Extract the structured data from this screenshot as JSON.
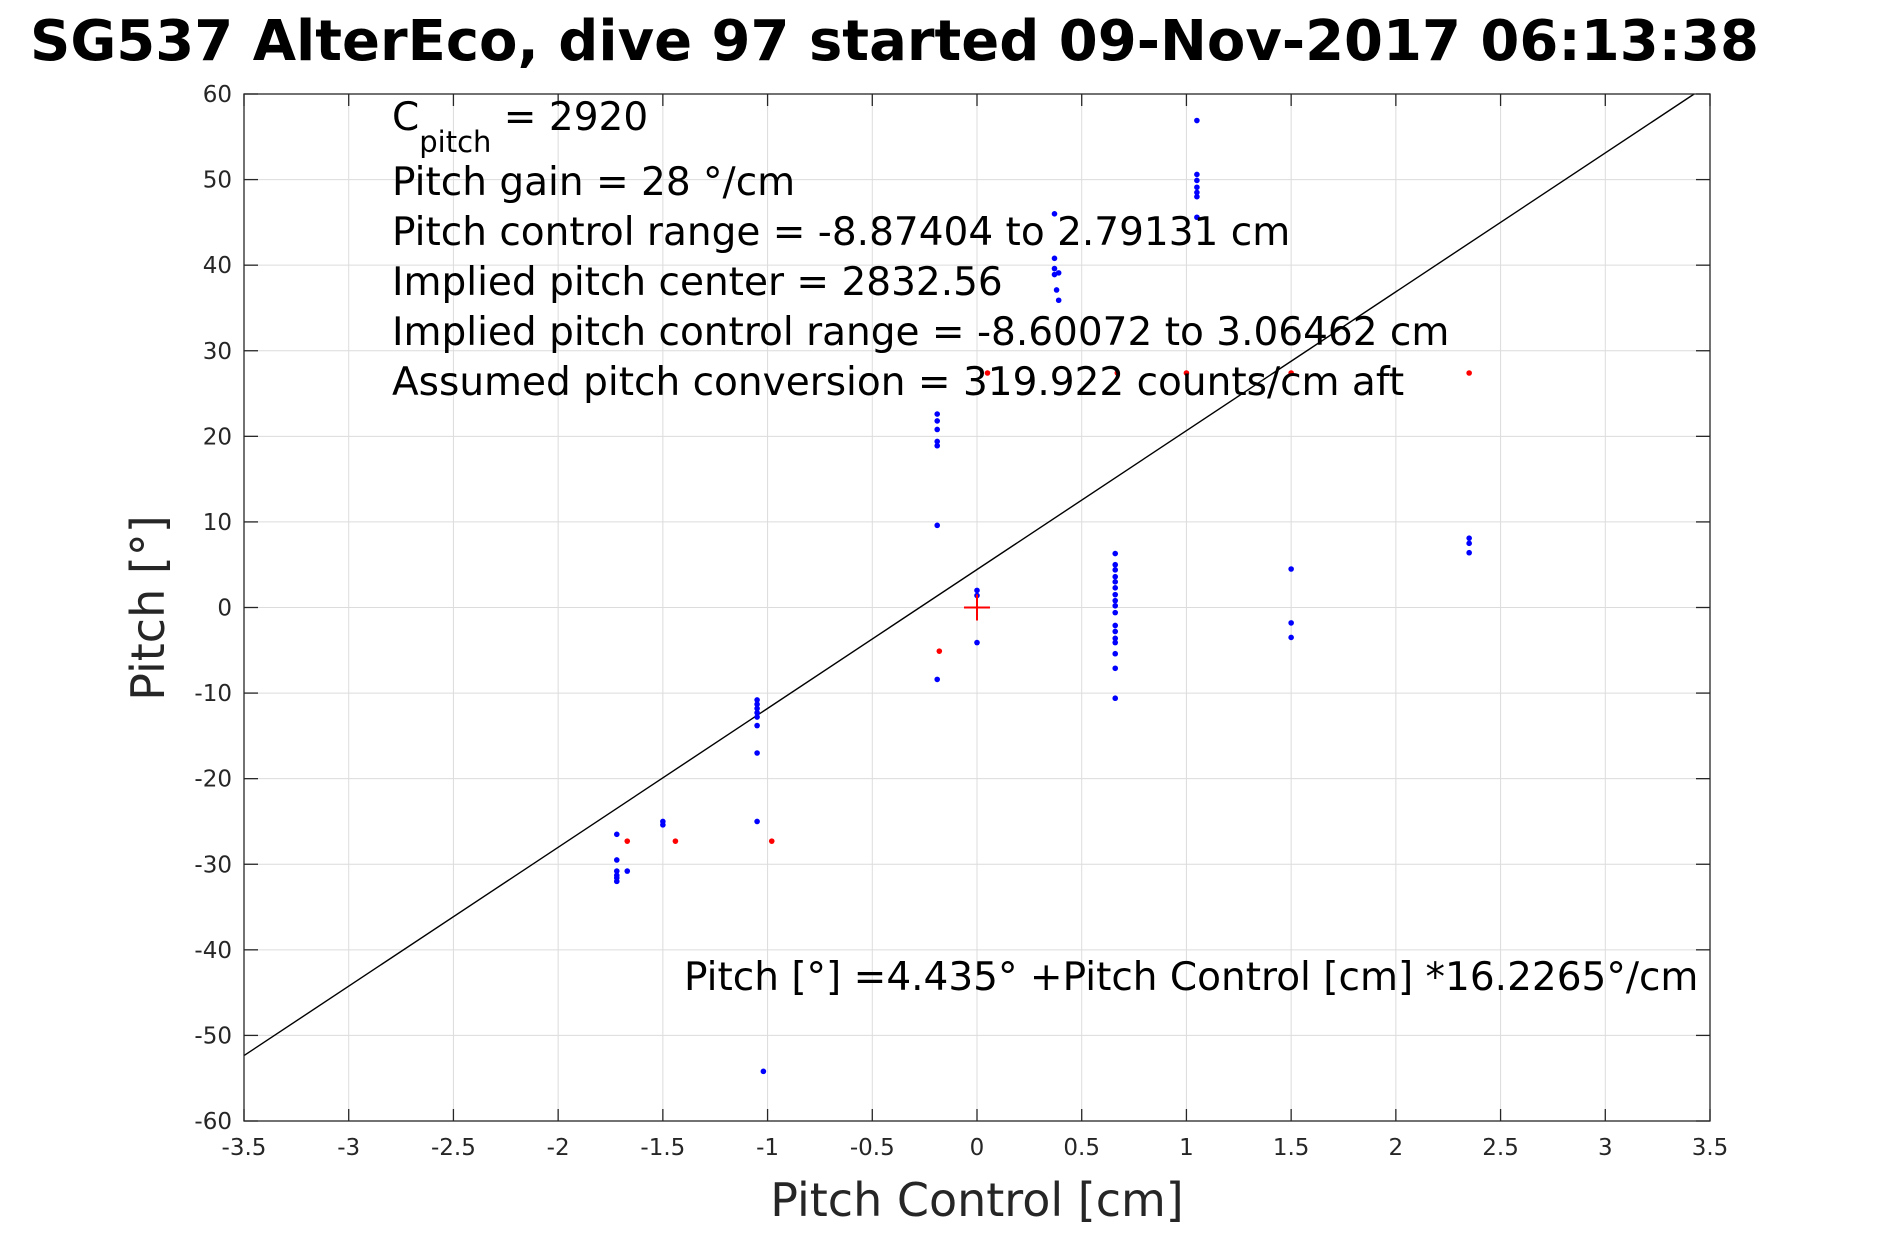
{
  "chart_data": {
    "type": "scatter",
    "title": "SG537 AlterEco, dive 97 started 09-Nov-2017 06:13:38",
    "xlabel": "Pitch Control [cm]",
    "ylabel": "Pitch [°]",
    "xlim": [
      -3.5,
      3.5
    ],
    "ylim": [
      -60,
      60
    ],
    "xticks": [
      -3.5,
      -3,
      -2.5,
      -2,
      -1.5,
      -1,
      -0.5,
      0,
      0.5,
      1,
      1.5,
      2,
      2.5,
      3,
      3.5
    ],
    "yticks": [
      -60,
      -50,
      -40,
      -30,
      -20,
      -10,
      0,
      10,
      20,
      30,
      40,
      50,
      60
    ],
    "xticklabels": [
      "-3.5",
      "-3",
      "-2.5",
      "-2",
      "-1.5",
      "-1",
      "-0.5",
      "0",
      "0.5",
      "1",
      "1.5",
      "2",
      "2.5",
      "3",
      "3.5"
    ],
    "yticklabels": [
      "-60",
      "-50",
      "-40",
      "-30",
      "-20",
      "-10",
      "0",
      "10",
      "20",
      "30",
      "40",
      "50",
      "60"
    ],
    "grid": true,
    "annotations": {
      "c_pitch_symbol": "C",
      "c_pitch_subscript": "pitch",
      "c_pitch_value": " = 2920",
      "lines": [
        "Pitch gain = 28 °/cm",
        "Pitch control range = -8.87404 to 2.79131 cm",
        "Implied pitch center = 2832.56",
        "Implied pitch control range = -8.60072 to 3.06462 cm",
        "Assumed pitch conversion = 319.922 counts/cm aft"
      ],
      "fit_equation": "Pitch [°] =4.435° +Pitch Control [cm] *16.2265°/cm"
    },
    "fit_line": {
      "intercept": 4.435,
      "slope": 16.2265,
      "color": "#000000"
    },
    "center_marker": {
      "x": 0,
      "y": 0,
      "color": "#ff0000"
    },
    "series": [
      {
        "color": "#0000ff",
        "points": [
          [
            -1.72,
            -26.5
          ],
          [
            -1.72,
            -29.5
          ],
          [
            -1.72,
            -30.8
          ],
          [
            -1.72,
            -31.3
          ],
          [
            -1.72,
            -31.6
          ],
          [
            -1.72,
            -32.0
          ],
          [
            -1.67,
            -30.8
          ],
          [
            -1.5,
            -25.0
          ],
          [
            -1.5,
            -25.4
          ],
          [
            -1.05,
            -10.8
          ],
          [
            -1.05,
            -11.3
          ],
          [
            -1.05,
            -11.8
          ],
          [
            -1.05,
            -12.3
          ],
          [
            -1.05,
            -12.8
          ],
          [
            -1.05,
            -13.8
          ],
          [
            -1.05,
            -17.0
          ],
          [
            -1.05,
            -25.0
          ],
          [
            -1.02,
            -54.2
          ],
          [
            -0.19,
            22.6
          ],
          [
            -0.19,
            21.8
          ],
          [
            -0.19,
            20.8
          ],
          [
            -0.19,
            19.4
          ],
          [
            -0.19,
            18.9
          ],
          [
            -0.19,
            9.6
          ],
          [
            -0.19,
            -8.4
          ],
          [
            0.0,
            2.0
          ],
          [
            0.0,
            1.4
          ],
          [
            0.0,
            -4.1
          ],
          [
            0.37,
            46.0
          ],
          [
            0.37,
            40.8
          ],
          [
            0.37,
            39.6
          ],
          [
            0.37,
            38.9
          ],
          [
            0.39,
            39.1
          ],
          [
            0.38,
            37.1
          ],
          [
            0.39,
            35.9
          ],
          [
            0.66,
            6.3
          ],
          [
            0.66,
            5.0
          ],
          [
            0.66,
            4.4
          ],
          [
            0.66,
            3.6
          ],
          [
            0.66,
            3.0
          ],
          [
            0.66,
            2.3
          ],
          [
            0.66,
            1.5
          ],
          [
            0.66,
            0.8
          ],
          [
            0.66,
            0.2
          ],
          [
            0.66,
            -0.6
          ],
          [
            0.66,
            -2.1
          ],
          [
            0.66,
            -2.8
          ],
          [
            0.66,
            -3.6
          ],
          [
            0.66,
            -4.1
          ],
          [
            0.66,
            -5.4
          ],
          [
            0.66,
            -7.1
          ],
          [
            0.66,
            -10.6
          ],
          [
            1.05,
            56.9
          ],
          [
            1.05,
            50.6
          ],
          [
            1.05,
            49.9
          ],
          [
            1.05,
            49.1
          ],
          [
            1.05,
            48.5
          ],
          [
            1.05,
            48.0
          ],
          [
            1.05,
            45.6
          ],
          [
            1.5,
            4.5
          ],
          [
            1.5,
            -1.8
          ],
          [
            1.5,
            -3.5
          ],
          [
            2.35,
            8.1
          ],
          [
            2.35,
            7.5
          ],
          [
            2.35,
            6.4
          ]
        ]
      },
      {
        "color": "#ff0000",
        "points": [
          [
            -1.67,
            -27.3
          ],
          [
            -1.44,
            -27.3
          ],
          [
            -0.98,
            -27.3
          ],
          [
            -0.18,
            -5.1
          ],
          [
            0.05,
            27.4
          ],
          [
            0.67,
            27.4
          ],
          [
            1.0,
            27.4
          ],
          [
            1.5,
            27.4
          ],
          [
            2.35,
            27.4
          ]
        ]
      }
    ]
  }
}
